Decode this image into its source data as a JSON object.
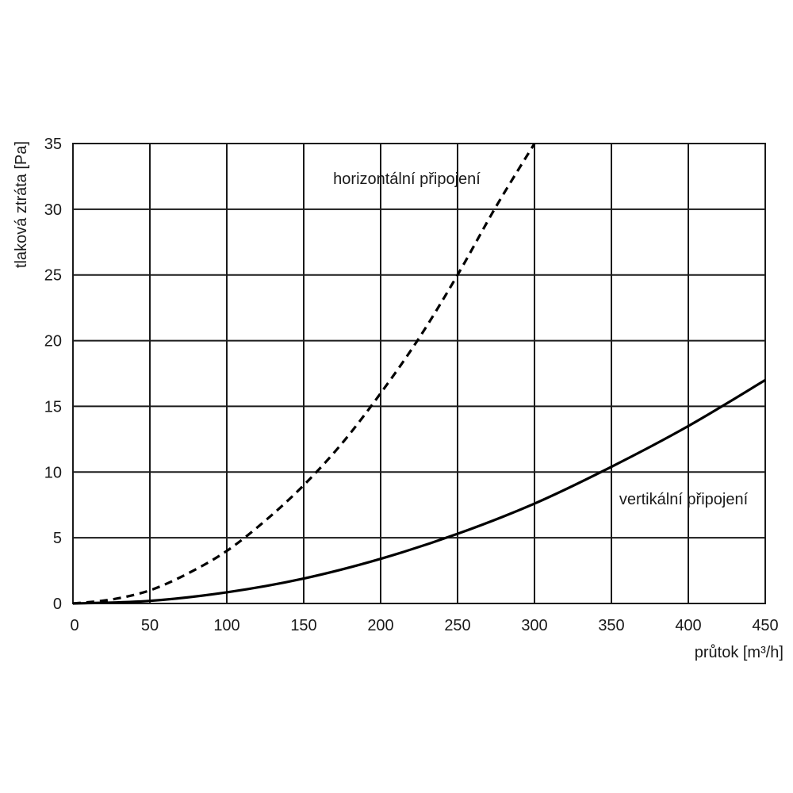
{
  "chart_data": {
    "type": "line",
    "xlabel": "průtok [m³/h]",
    "ylabel": "tlaková ztráta [Pa]",
    "xlim": [
      0,
      450
    ],
    "ylim": [
      0,
      35
    ],
    "xticks": [
      0,
      50,
      100,
      150,
      200,
      250,
      300,
      350,
      400,
      450
    ],
    "yticks": [
      0,
      5,
      10,
      15,
      20,
      25,
      30,
      35
    ],
    "grid": true,
    "series": [
      {
        "name": "horizontální připojení",
        "style": "dashed",
        "color": "#000000",
        "x": [
          0,
          25,
          50,
          75,
          100,
          125,
          150,
          175,
          200,
          225,
          250,
          275,
          300
        ],
        "y": [
          0,
          0.3,
          1.0,
          2.3,
          4.0,
          6.3,
          9.0,
          12.2,
          16.0,
          20.2,
          25.0,
          30.2,
          35.0
        ]
      },
      {
        "name": "vertikální připojení",
        "style": "solid",
        "color": "#000000",
        "x": [
          0,
          50,
          100,
          150,
          200,
          250,
          300,
          350,
          400,
          450
        ],
        "y": [
          0,
          0.2,
          0.85,
          1.9,
          3.4,
          5.3,
          7.6,
          10.4,
          13.5,
          17.0
        ]
      }
    ]
  }
}
